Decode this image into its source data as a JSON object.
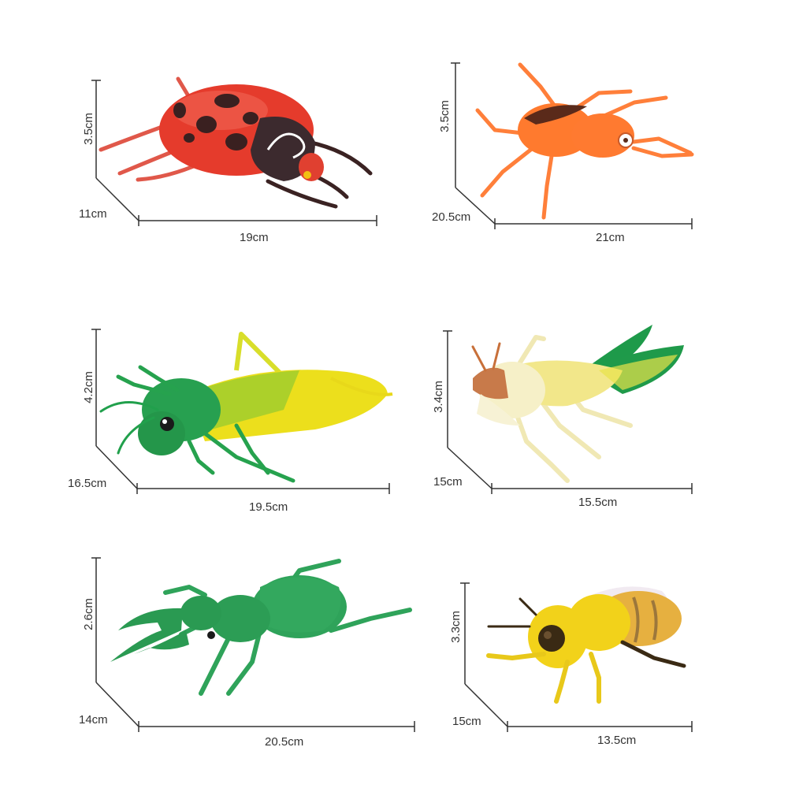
{
  "colors": {
    "dimension_line": "#333333",
    "ladybug_red": "#e53b2c",
    "ladybug_spots": "#3a2020",
    "weevil_orange": "#ff7a2e",
    "grasshopper_green": "#21a04c",
    "grasshopper_yellow": "#f0e21a",
    "cricket_cream": "#f6f0c8",
    "cricket_green": "#1f9a4a",
    "stag_beetle_green": "#2fa35a",
    "bee_yellow": "#f2d21a"
  },
  "toys": [
    {
      "id": "ladybug",
      "icon": "ladybug-icon",
      "height": "3.5cm",
      "depth": "11cm",
      "length": "19cm"
    },
    {
      "id": "weevil",
      "icon": "weevil-icon",
      "height": "3.5cm",
      "depth": "20.5cm",
      "length": "21cm"
    },
    {
      "id": "grasshopper",
      "icon": "grasshopper-icon",
      "height": "4.2cm",
      "depth": "16.5cm",
      "length": "19.5cm"
    },
    {
      "id": "cricket",
      "icon": "cricket-icon",
      "height": "3.4cm",
      "depth": "15cm",
      "length": "15.5cm"
    },
    {
      "id": "stag-beetle",
      "icon": "stag-beetle-icon",
      "height": "2.6cm",
      "depth": "14cm",
      "length": "20.5cm"
    },
    {
      "id": "bee",
      "icon": "bee-icon",
      "height": "3.3cm",
      "depth": "15cm",
      "length": "13.5cm"
    }
  ]
}
